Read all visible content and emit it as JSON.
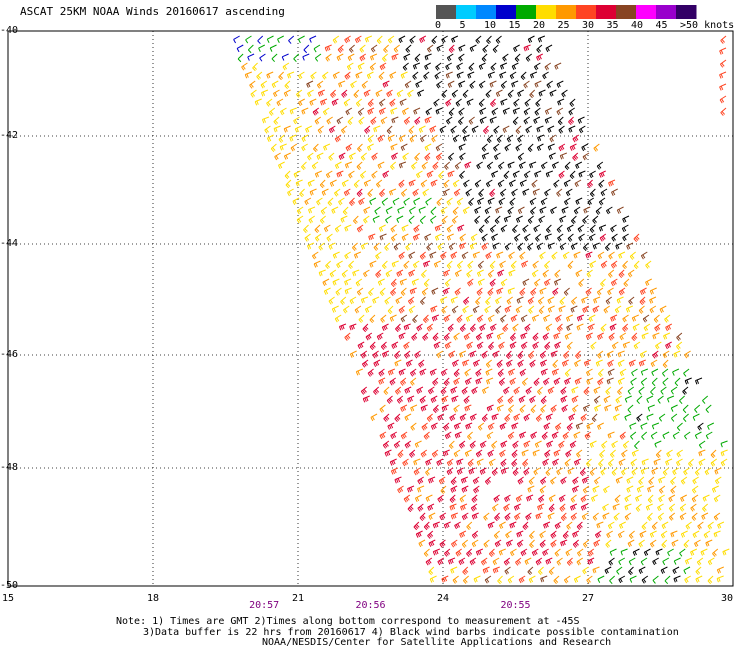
{
  "title": "ASCAT 25KM NOAA Winds 20160617 ascending",
  "colorbar": {
    "labels": [
      "0",
      "5",
      "10",
      "15",
      "20",
      "25",
      "30",
      "35",
      "40",
      "45",
      ">50 knots"
    ],
    "colors": [
      "#555555",
      "#00ccff",
      "#0088ff",
      "#0000cc",
      "#00aa00",
      "#ffdd00",
      "#ff9900",
      "#ff4422",
      "#dd0033",
      "#884422",
      "#ff00ff",
      "#9900cc",
      "#330066"
    ]
  },
  "map": {
    "lat_ticks": [
      "-40",
      "-42",
      "-44",
      "-46",
      "-48",
      "-50"
    ],
    "lon_ticks": [
      "15",
      "18",
      "21",
      "24",
      "27",
      "30"
    ],
    "lat_range": [
      -40,
      -50
    ],
    "lon_range": [
      15,
      30
    ],
    "grid": true,
    "time_labels": [
      {
        "text": "20:57",
        "lon": 20.3
      },
      {
        "text": "20:56",
        "lon": 22.5
      },
      {
        "text": "20:55",
        "lon": 25.5
      }
    ],
    "barb_colors": {
      "black": "#000000",
      "green": "#00aa00",
      "blue": "#0000cc",
      "yellow": "#ffdd00",
      "orange": "#ff9900",
      "redorange": "#ff4422",
      "red": "#dd0033",
      "brown": "#884422"
    }
  },
  "notes": {
    "line1": "Note: 1) Times are GMT 2)Times along bottom correspond to measurement at -45S",
    "line2": "3)Data buffer is 22 hrs from 20160617 4) Black wind barbs indicate possible contamination",
    "line3": "NOAA/NESDIS/Center for Satellite Applications and Research"
  }
}
